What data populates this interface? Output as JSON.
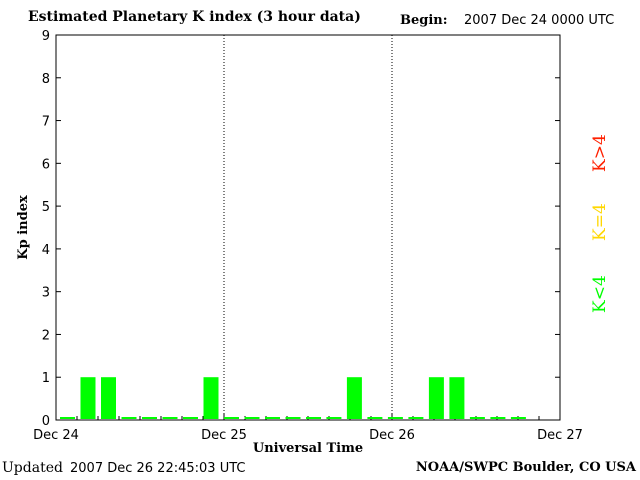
{
  "header": {
    "title": "Estimated Planetary K index (3 hour data)",
    "begin_label": "Begin:",
    "begin_value": "2007 Dec 24 0000 UTC"
  },
  "footer": {
    "updated_label": "Updated",
    "updated_value": "2007 Dec 26 22:45:03 UTC",
    "source": "NOAA/SWPC Boulder, CO USA"
  },
  "legend": [
    {
      "label": "K>4",
      "color": "#ff2000"
    },
    {
      "label": "K=4",
      "color": "#ffd700"
    },
    {
      "label": "K<4",
      "color": "#00ff00"
    }
  ],
  "chart_data": {
    "type": "bar",
    "title": "Estimated Planetary K index (3 hour data)",
    "ylabel": "Kp index",
    "xlabel": "Universal Time",
    "ylim": [
      0,
      9
    ],
    "yticks": [
      "0",
      "1",
      "2",
      "3",
      "4",
      "5",
      "6",
      "7",
      "8",
      "9"
    ],
    "xticks": [
      "Dec 24",
      "Dec 25",
      "Dec 26",
      "Dec 27"
    ],
    "day_separators": [
      "Dec 25",
      "Dec 26"
    ],
    "bar_color": "#00ff00",
    "series": [
      {
        "values": [
          0,
          1,
          1,
          0,
          0,
          0,
          0,
          1,
          0,
          0,
          0,
          0,
          0,
          0,
          1,
          0,
          0,
          0,
          1,
          1,
          0,
          0,
          0
        ]
      }
    ]
  }
}
